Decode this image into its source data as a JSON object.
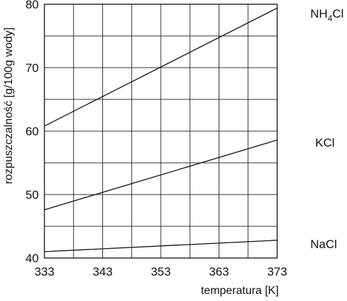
{
  "chart_data": {
    "type": "line",
    "xlabel": "temperatura [K]",
    "ylabel": "rozpuszczalność [g/100g wody]",
    "xlim": [
      333,
      373
    ],
    "ylim": [
      40,
      80
    ],
    "x_ticks": [
      "333",
      "343",
      "353",
      "363",
      "373"
    ],
    "y_ticks": [
      "40",
      "50",
      "60",
      "70",
      "80"
    ],
    "grid_x_step": 5,
    "grid_y_step": 5,
    "grid": true,
    "series": [
      {
        "name": "NH4Cl",
        "name_main": "NH",
        "name_sub": "4",
        "name_tail": "Cl",
        "x": [
          333,
          373
        ],
        "y": [
          60.8,
          79.4
        ]
      },
      {
        "name": "KCl",
        "x": [
          333,
          373
        ],
        "y": [
          47.6,
          58.6
        ]
      },
      {
        "name": "NaCl",
        "x": [
          333,
          373
        ],
        "y": [
          41.0,
          42.8
        ]
      }
    ]
  }
}
